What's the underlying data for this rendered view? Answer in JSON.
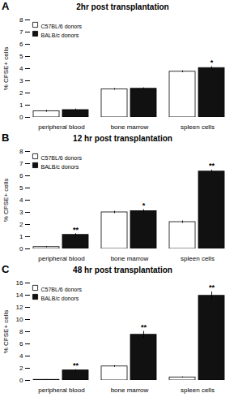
{
  "chart_data": [
    {
      "type": "bar",
      "title": "2hr post transplantation",
      "ylabel": "% CFSE+ cells",
      "categories": [
        "peripheral blood",
        "bone marrow",
        "spleen cells"
      ],
      "series": [
        {
          "name": "C57BL/6 donors",
          "color": "#ffffff",
          "values": [
            0.5,
            2.3,
            3.75
          ],
          "errors": [
            0.08,
            0.07,
            0.08
          ]
        },
        {
          "name": "BALB/c donors",
          "color": "#111111",
          "values": [
            0.6,
            2.35,
            4.05
          ],
          "errors": [
            0.08,
            0.08,
            0.12
          ]
        }
      ],
      "ylim": [
        0,
        8
      ],
      "yticks": [
        0,
        1,
        2,
        3,
        4,
        5,
        6,
        7,
        8
      ],
      "legend": "upper left",
      "grid": false,
      "annotations": [
        {
          "text": "A"
        },
        {
          "text": "*",
          "category": "spleen cells",
          "series": "BALB/c donors"
        }
      ]
    },
    {
      "type": "bar",
      "title": "12 hr post transplantation",
      "ylabel": "% CFSE+ cells",
      "categories": [
        "peripheral blood",
        "bone marrow",
        "spleen cells"
      ],
      "series": [
        {
          "name": "C57BL/6 donors",
          "color": "#ffffff",
          "values": [
            0.15,
            3.0,
            2.2
          ],
          "errors": [
            0.05,
            0.1,
            0.1
          ]
        },
        {
          "name": "BALB/c donors",
          "color": "#111111",
          "values": [
            1.15,
            3.1,
            6.35
          ],
          "errors": [
            0.1,
            0.12,
            0.12
          ]
        }
      ],
      "ylim": [
        0,
        8
      ],
      "yticks": [
        0,
        1,
        2,
        3,
        4,
        5,
        6,
        7,
        8
      ],
      "legend": "upper left",
      "grid": false,
      "annotations": [
        {
          "text": "B"
        },
        {
          "text": "**",
          "category": "peripheral blood",
          "series": "BALB/c donors"
        },
        {
          "text": "*",
          "category": "bone marrow",
          "series": "BALB/c donors"
        },
        {
          "text": "**",
          "category": "spleen cells",
          "series": "BALB/c donors"
        }
      ]
    },
    {
      "type": "bar",
      "title": "48 hr post transplantation",
      "ylabel": "% CFSE+ cells",
      "categories": [
        "peripheral blood",
        "bone marrow",
        "spleen cells"
      ],
      "series": [
        {
          "name": "C57BL/6 donors",
          "color": "#ffffff",
          "values": [
            0.1,
            2.3,
            0.5
          ],
          "errors": [
            0.05,
            0.15,
            0.08
          ]
        },
        {
          "name": "BALB/c donors",
          "color": "#111111",
          "values": [
            1.65,
            7.5,
            13.9
          ],
          "errors": [
            0.12,
            0.55,
            0.65
          ]
        }
      ],
      "ylim": [
        0,
        16
      ],
      "yticks": [
        0,
        2,
        4,
        6,
        8,
        10,
        12,
        14,
        16
      ],
      "legend": "upper left",
      "grid": false,
      "annotations": [
        {
          "text": "C"
        },
        {
          "text": "**",
          "category": "peripheral blood",
          "series": "BALB/c donors"
        },
        {
          "text": "**",
          "category": "bone marrow",
          "series": "BALB/c donors"
        },
        {
          "text": "**",
          "category": "spleen cells",
          "series": "BALB/c donors"
        }
      ]
    }
  ]
}
